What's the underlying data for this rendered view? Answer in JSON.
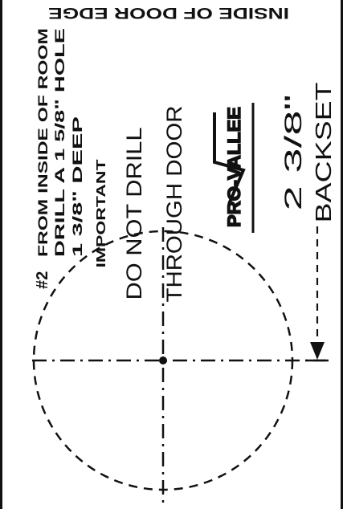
{
  "header": {
    "text": "INSIDE OF DOOR EDGE"
  },
  "instructions": {
    "step_mark": "#2",
    "line1": "FROM INSIDE OF ROOM",
    "line2": "DRILL A 1 5/8\" HOLE",
    "line3": "1 3/8\" DEEP"
  },
  "warning": {
    "label": "IMPORTANT",
    "line1": "DO NOT DRILL",
    "line2": "THROUGH DOOR"
  },
  "brand": {
    "logo_text": "PRO-VALLEE"
  },
  "backset": {
    "value": "2 3/8\"",
    "label": "BACKSET"
  },
  "colors": {
    "ink": "#111111",
    "paper": "#ffffff"
  }
}
